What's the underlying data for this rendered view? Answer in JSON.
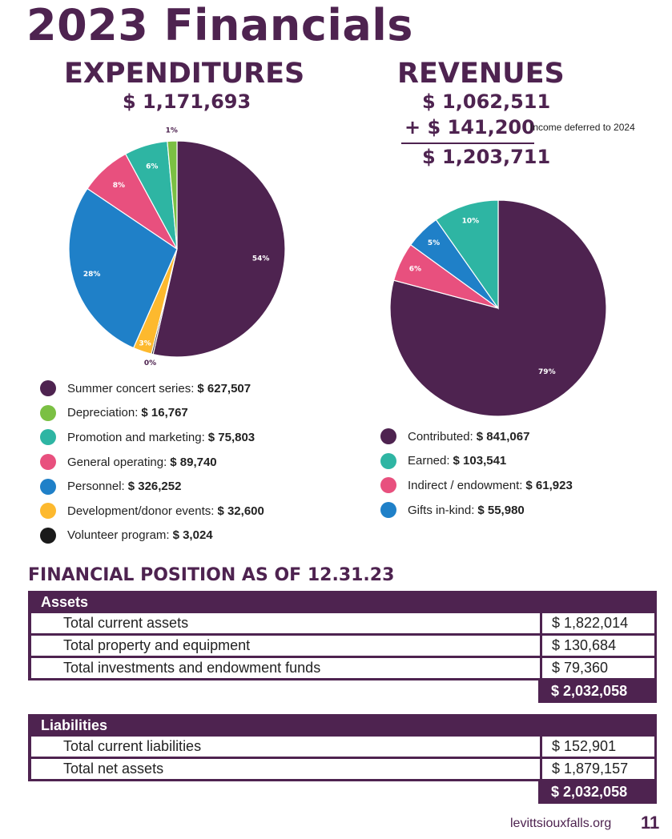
{
  "page_title": "2023 Financials",
  "expenditures": {
    "heading": "EXPENDITURES",
    "total": "$ 1,171,693"
  },
  "revenues": {
    "heading": "REVENUES",
    "line1": "$ 1,062,511",
    "line2": "+ $ 141,200",
    "note": "Income deferred to 2024",
    "total": "$ 1,203,711"
  },
  "chart_data": [
    {
      "type": "pie",
      "labels": [
        "Summer concert series:",
        "Depreciation:",
        "Promotion and marketing:",
        "General operating:",
        "Personnel:",
        "Development/donor events:",
        "Volunteer program:"
      ],
      "values": [
        627507,
        16767,
        75803,
        89740,
        326252,
        32600,
        3024
      ],
      "value_labels": [
        "$ 627,507",
        "$ 16,767",
        "$ 75,803",
        "$ 89,740",
        "$ 326,252",
        "$ 32,600",
        "$ 3,024"
      ],
      "slice_labels": [
        "54%",
        "1%",
        "6%",
        "8%",
        "28%",
        "3%",
        "0%"
      ],
      "colors": [
        "#4e2350",
        "#7bc043",
        "#2eb5a3",
        "#e8507e",
        "#1f80c8",
        "#fdb92e",
        "#1a1a1a"
      ],
      "draw_order": [
        0,
        6,
        5,
        4,
        3,
        2,
        1
      ]
    },
    {
      "type": "pie",
      "labels": [
        "Contributed:",
        "Earned:",
        "Indirect / endowment:",
        "Gifts in-kind:"
      ],
      "values": [
        841067,
        103541,
        61923,
        55980
      ],
      "value_labels": [
        "$ 841,067",
        "$ 103,541",
        "$ 61,923",
        "$ 55,980"
      ],
      "slice_labels": [
        "79%",
        "10%",
        "6%",
        "5%"
      ],
      "colors": [
        "#4e2350",
        "#2eb5a3",
        "#e8507e",
        "#1f80c8"
      ],
      "draw_order": [
        0,
        2,
        3,
        1
      ]
    }
  ],
  "financial_position": {
    "title": "FINANCIAL POSITION AS OF 12.31.23",
    "assets": {
      "header": "Assets",
      "rows": [
        {
          "label": "Total current assets",
          "value": "$  1,822,014"
        },
        {
          "label": "Total property and equipment",
          "value": "$  130,684"
        },
        {
          "label": "Total investments and endowment funds",
          "value": "$  79,360"
        }
      ],
      "total": "$  2,032,058"
    },
    "liabilities": {
      "header": "Liabilities",
      "rows": [
        {
          "label": "Total current liabilities",
          "value": "$  152,901"
        },
        {
          "label": "Total net assets",
          "value": "$  1,879,157"
        }
      ],
      "total": "$  2,032,058"
    }
  },
  "footer": {
    "url": "levittsiouxfalls.org",
    "page_number": "11"
  }
}
